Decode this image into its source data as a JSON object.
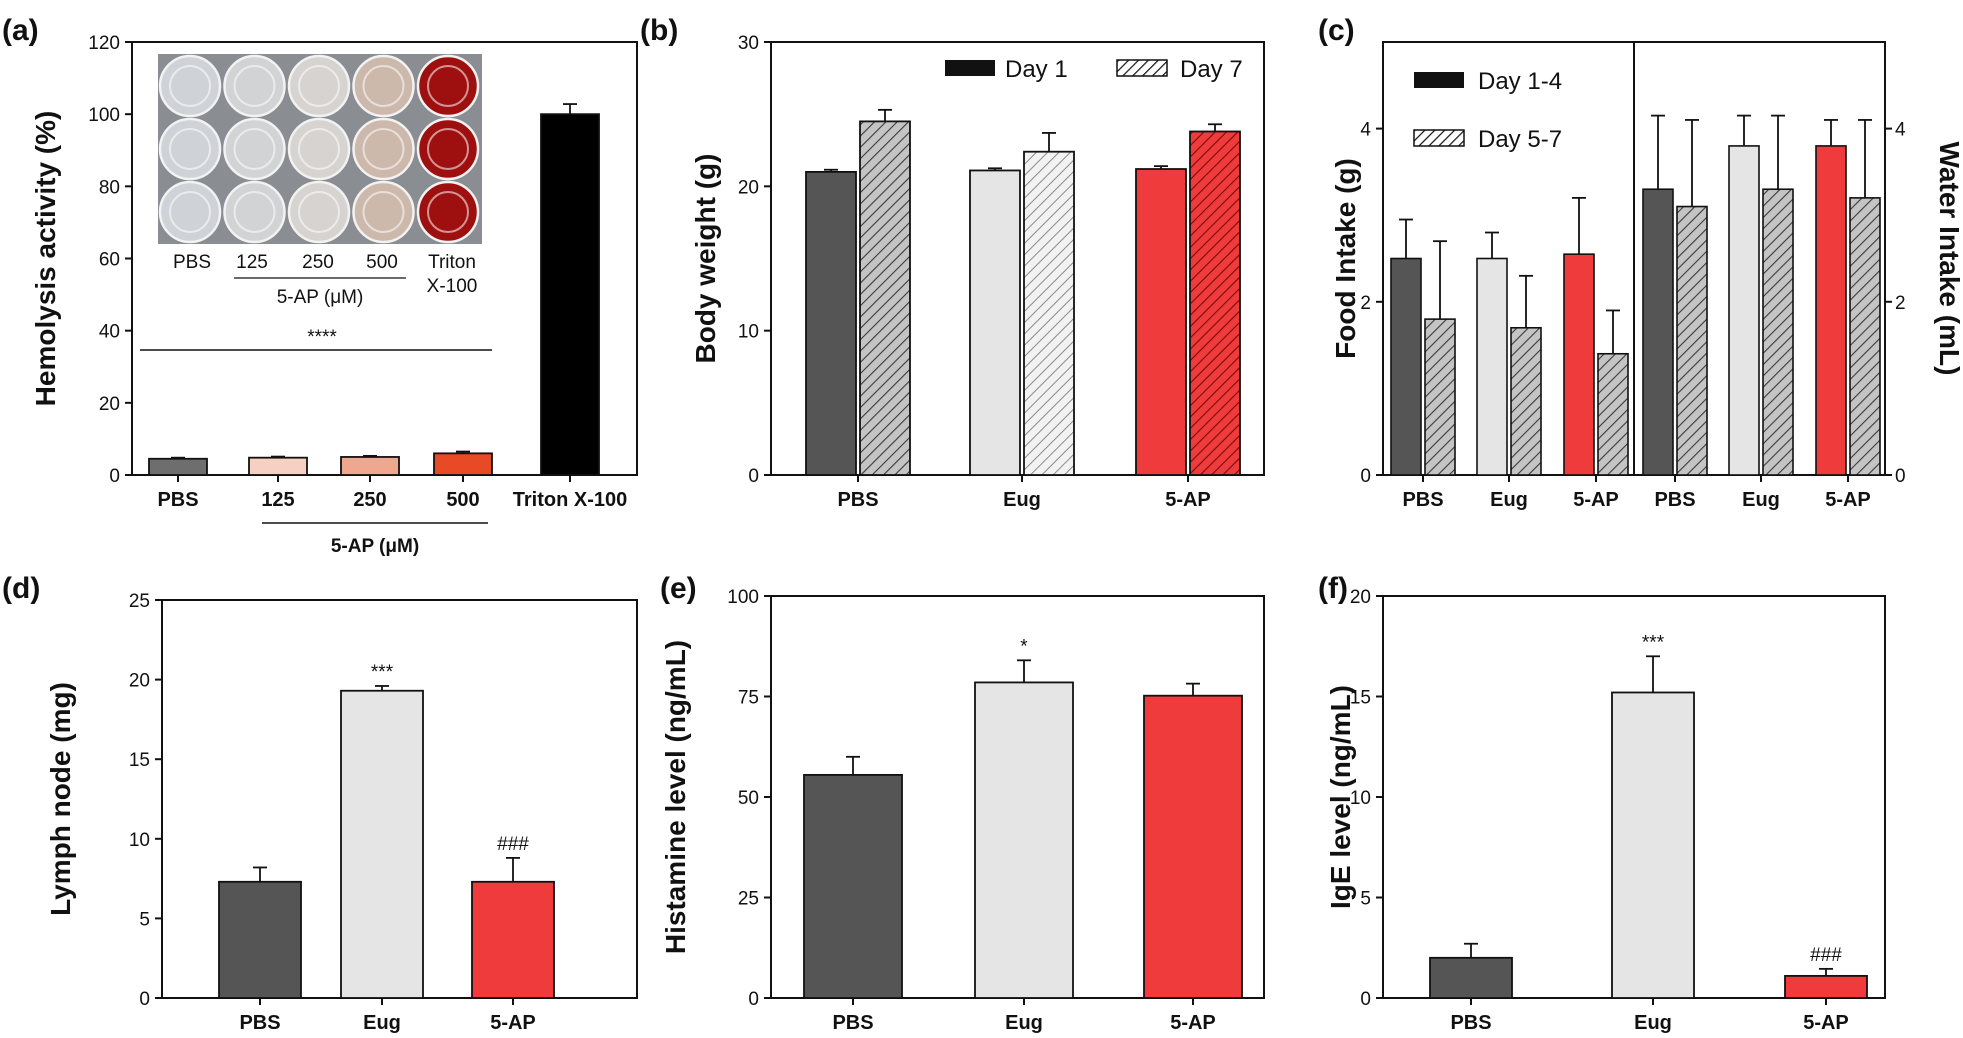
{
  "figure": {
    "panels": [
      {
        "letter": "(a)"
      },
      {
        "letter": "(b)"
      },
      {
        "letter": "(c)"
      },
      {
        "letter": "(d)"
      },
      {
        "letter": "(e)"
      },
      {
        "letter": "(f)"
      }
    ]
  },
  "chart_data": [
    {
      "panel": "(a)",
      "type": "bar",
      "ylabel": "Hemolysis activity (%)",
      "ylim": [
        0,
        120
      ],
      "yticks": [
        0,
        20,
        40,
        60,
        80,
        100,
        120
      ],
      "categories": [
        "PBS",
        "125",
        "250",
        "500",
        "Triton X-100"
      ],
      "values": [
        4.5,
        4.8,
        5.0,
        6.0,
        100
      ],
      "errors": [
        0.3,
        0.3,
        0.3,
        0.5,
        2.8
      ],
      "colors": [
        "#6e6e6e",
        "#f6d0c3",
        "#f0a78f",
        "#e84a25",
        "#000000"
      ],
      "group_label": "5-AP (μM)",
      "group_categories": [
        "125",
        "250",
        "500"
      ],
      "significance": {
        "text": "****",
        "from": "PBS",
        "to": "500"
      },
      "inset": {
        "description_labels": [
          "PBS",
          "125",
          "250",
          "500",
          "Triton X-100"
        ],
        "label_lines": [
          [
            "PBS"
          ],
          [
            "125"
          ],
          [
            "250"
          ],
          [
            "500"
          ],
          [
            "Triton",
            "X-100"
          ]
        ],
        "group_label": "5-AP (μM)",
        "well_colors": [
          "#cfd2d6",
          "#d2d3d5",
          "#d6d3d0",
          "#cdb8ac",
          "#9e1010"
        ]
      }
    },
    {
      "panel": "(b)",
      "type": "bar",
      "ylabel": "Body weight (g)",
      "ylim": [
        0,
        30
      ],
      "yticks": [
        0,
        10,
        20,
        30
      ],
      "categories": [
        "PBS",
        "Eug",
        "5-AP"
      ],
      "series": [
        {
          "name": "Day 1",
          "values": [
            21.0,
            21.1,
            21.2
          ],
          "errors": [
            0.15,
            0.15,
            0.2
          ],
          "pattern": "solid"
        },
        {
          "name": "Day 7",
          "values": [
            24.5,
            22.4,
            23.8
          ],
          "errors": [
            0.8,
            1.3,
            0.5
          ],
          "pattern": "hatched"
        }
      ],
      "colors": [
        "#555555",
        "#e5e5e5",
        "#ef3b3b"
      ],
      "legend": "top"
    },
    {
      "panel": "(c)",
      "type": "bar",
      "ylabel": "Food Intake (g)",
      "y2label": "Water Intake (mL)",
      "ylim": [
        0,
        5
      ],
      "yticks": [
        0,
        2,
        4
      ],
      "categories": [
        "PBS",
        "Eug",
        "5-AP",
        "PBS",
        "Eug",
        "5-AP"
      ],
      "series": [
        {
          "name": "Day 1-4",
          "values": [
            2.5,
            2.5,
            2.55,
            3.3,
            3.8,
            3.8
          ],
          "errors": [
            0.45,
            0.3,
            0.65,
            0.85,
            0.35,
            0.3
          ],
          "pattern": "solid"
        },
        {
          "name": "Day 5-7",
          "values": [
            1.8,
            1.7,
            1.4,
            3.1,
            3.3,
            3.2
          ],
          "errors": [
            0.9,
            0.6,
            0.5,
            1.0,
            0.85,
            0.9
          ],
          "pattern": "hatched"
        }
      ],
      "colors": [
        "#555555",
        "#e5e5e5",
        "#ef3b3b"
      ],
      "legend": "top-left"
    },
    {
      "panel": "(d)",
      "type": "bar",
      "ylabel": "Lymph node (mg)",
      "ylim": [
        0,
        25
      ],
      "yticks": [
        0,
        5,
        10,
        15,
        20,
        25
      ],
      "categories": [
        "PBS",
        "Eug",
        "5-AP"
      ],
      "values": [
        7.3,
        19.3,
        7.3
      ],
      "errors": [
        0.9,
        0.3,
        1.5
      ],
      "colors": [
        "#555555",
        "#e5e5e5",
        "#ef3b3b"
      ],
      "annotations": [
        "",
        "***",
        "###"
      ]
    },
    {
      "panel": "(e)",
      "type": "bar",
      "ylabel": "Histamine level (ng/mL)",
      "ylim": [
        0,
        100
      ],
      "yticks": [
        0,
        25,
        50,
        75,
        100
      ],
      "categories": [
        "PBS",
        "Eug",
        "5-AP"
      ],
      "values": [
        55.5,
        78.5,
        75.2
      ],
      "errors": [
        4.5,
        5.5,
        3.0
      ],
      "colors": [
        "#555555",
        "#e5e5e5",
        "#ef3b3b"
      ],
      "annotations": [
        "",
        "*",
        ""
      ]
    },
    {
      "panel": "(f)",
      "type": "bar",
      "ylabel": "IgE level (ng/mL)",
      "ylim": [
        0,
        20
      ],
      "yticks": [
        0,
        5,
        10,
        15,
        20
      ],
      "categories": [
        "PBS",
        "Eug",
        "5-AP"
      ],
      "values": [
        2.0,
        15.2,
        1.1
      ],
      "errors": [
        0.7,
        1.8,
        0.35
      ],
      "colors": [
        "#555555",
        "#e5e5e5",
        "#ef3b3b"
      ],
      "annotations": [
        "",
        "***",
        "###"
      ]
    }
  ]
}
